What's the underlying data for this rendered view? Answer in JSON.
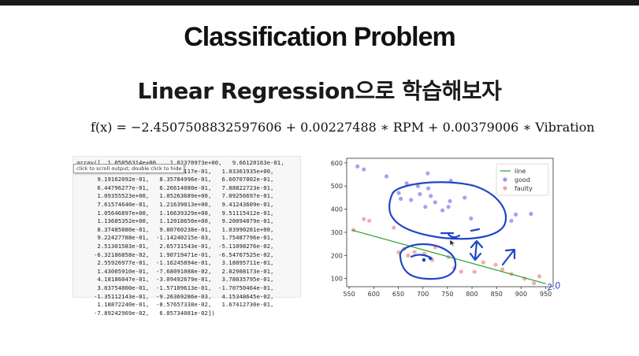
{
  "slide": {
    "title": "Classification Problem",
    "subtitle": "Linear Regression으로 학습해보자",
    "formula": "f(x) = −2.4507508832597606 + 0.00227488 ∗ RPM + 0.00379006 ∗ Vibration"
  },
  "output_panel": {
    "tooltip": "click to scroll output; double click to hide",
    "array_text": "array([  1.05856314e+00,   1.02370973e+00,   9.66120163e-01,\n      7.68853556e-01,   7.49348117e-01,   1.03361935e+00,\n      9.19162092e-01,   8.35784996e-01,   6.60707802e-01,\n      6.44796277e-01,   6.26614080e-01,   7.88822723e-01,\n      1.09355523e+00,   1.05263689e+00,   7.09256697e-01,\n      7.61574640e-01,   1.21639013e+00,   9.41243609e-01,\n      1.05646897e+00,   1.16639329e+00,   9.51115412e-01,\n      1.13685352e+00,   1.12018650e+00,   9.20094079e-01,\n      8.37485080e-01,   9.80760238e-01,   1.03990281e+00,\n      9.22427788e-01,  -1.14240215e-03,   1.75487796e-01,\n      2.51301583e-01,   2.65731543e-01,  -5.11098276e-02,\n     -6.32186858e-02,   1.90719471e-01,  -6.54767525e-02,\n      2.55926977e-01,  -1.16245894e-01,   3.18095711e-01,\n      1.43005910e-01,  -7.68091088e-02,   2.02908173e-01,\n      4.18186047e-01,  -3.09492679e-01,   3.78035795e-01,\n      3.03754000e-01,  -1.57109613e-01,  -1.70750464e-01,\n     -1.35112143e-01,  -9.26369286e-03,   4.15348645e-02,\n      1.18872240e-01,  -8.57657338e-02,   1.67412730e-01,\n     -7.89242969e-02,   6.05734081e-02])"
  },
  "annotation": {
    "handwritten": "2.0"
  },
  "chart_data": {
    "type": "scatter",
    "title": "",
    "xlabel": "",
    "ylabel": "",
    "xlim": [
      545,
      965
    ],
    "ylim": [
      65,
      620
    ],
    "xticks": [
      550,
      600,
      650,
      700,
      750,
      800,
      850,
      900,
      950
    ],
    "yticks": [
      100,
      200,
      300,
      400,
      500,
      600
    ],
    "grid": false,
    "legend_position": "top-right",
    "legend": [
      "line",
      "good",
      "faulty"
    ],
    "colors": {
      "line": "#2ca02c",
      "good": "#9a98f0",
      "faulty": "#f5a3a3",
      "ink": "#1f46c8"
    },
    "series": [
      {
        "name": "good",
        "points": [
          [
            567,
            585
          ],
          [
            580,
            572
          ],
          [
            626,
            542
          ],
          [
            667,
            512
          ],
          [
            690,
            500
          ],
          [
            694,
            465
          ],
          [
            651,
            470
          ],
          [
            710,
            555
          ],
          [
            755,
            435
          ],
          [
            676,
            440
          ],
          [
            711,
            490
          ],
          [
            757,
            523
          ],
          [
            740,
            395
          ],
          [
            785,
            450
          ],
          [
            725,
            430
          ],
          [
            752,
            410
          ],
          [
            880,
            350
          ],
          [
            798,
            360
          ],
          [
            889,
            377
          ],
          [
            920,
            380
          ],
          [
            863,
            480
          ],
          [
            716,
            457
          ],
          [
            655,
            445
          ],
          [
            705,
            410
          ]
        ]
      },
      {
        "name": "faulty",
        "points": [
          [
            559,
            310
          ],
          [
            580,
            357
          ],
          [
            591,
            350
          ],
          [
            641,
            320
          ],
          [
            651,
            214
          ],
          [
            662,
            228
          ],
          [
            670,
            200
          ],
          [
            683,
            215
          ],
          [
            703,
            208
          ],
          [
            719,
            180
          ],
          [
            725,
            235
          ],
          [
            752,
            193
          ],
          [
            764,
            145
          ],
          [
            778,
            130
          ],
          [
            805,
            129
          ],
          [
            823,
            170
          ],
          [
            848,
            160
          ],
          [
            862,
            140
          ],
          [
            880,
            120
          ],
          [
            907,
            100
          ],
          [
            926,
            80
          ],
          [
            937,
            110
          ]
        ]
      },
      {
        "name": "line",
        "kind": "line",
        "x": [
          555,
          950
        ],
        "y": [
          310,
          78
        ]
      }
    ]
  }
}
